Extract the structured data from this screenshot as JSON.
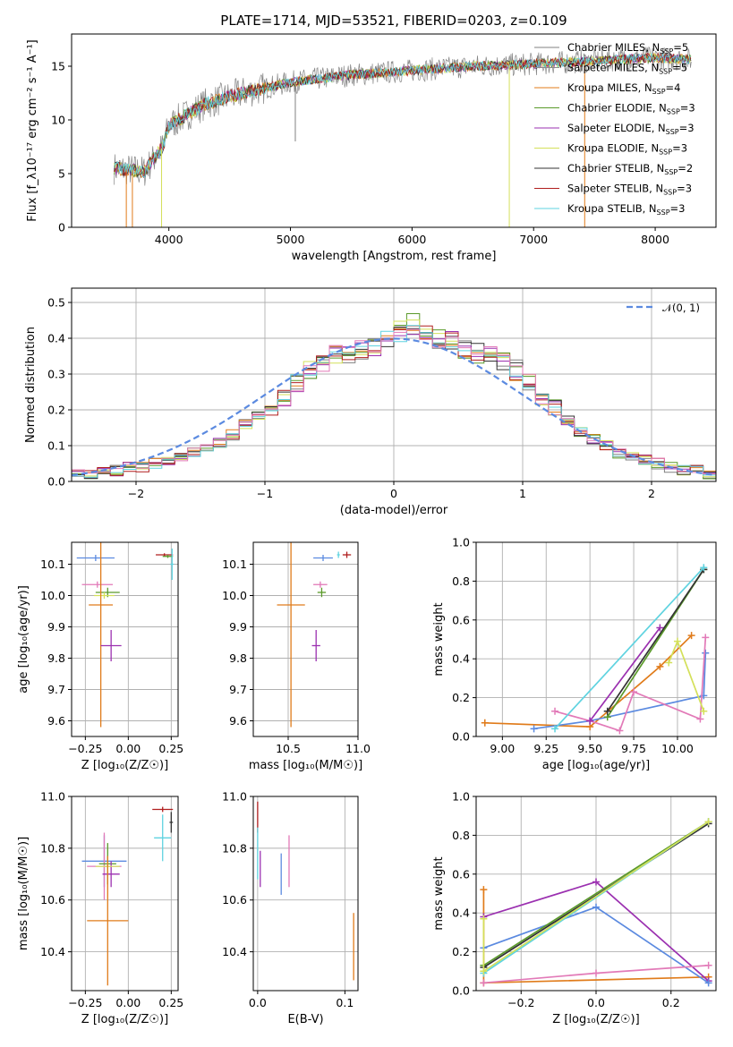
{
  "figure_title": "PLATE=1714, MJD=53521, FIBERID=0203, z=0.109",
  "colors": {
    "Chabrier MILES": "#808080",
    "Salpeter MILES": "#8c8c8c",
    "Kroupa MILES": "#e07b1a",
    "Chabrier ELODIE": "#5a9a2a",
    "Salpeter ELODIE": "#9b30b0",
    "Kroupa ELODIE": "#d4e05a",
    "Chabrier STELIB": "#333333",
    "Salpeter STELIB": "#b01e1e",
    "Kroupa STELIB": "#5fd3e0",
    "pink": "#e27ab8",
    "blue": "#5b8ae0",
    "normal": "#5b8ae0"
  },
  "chart_data": [
    {
      "id": "spectrum",
      "type": "line",
      "title": "PLATE=1714, MJD=53521, FIBERID=0203, z=0.109",
      "xlabel": "wavelength [Angstrom, rest frame]",
      "ylabel": "Flux [f_λ10⁻¹⁷ erg cm⁻² s⁻¹ A⁻¹]",
      "xlim": [
        3200,
        8500
      ],
      "ylim": [
        0,
        18
      ],
      "xticks": [
        "4000",
        "5000",
        "6000",
        "7000",
        "8000"
      ],
      "yticks": [
        "0",
        "5",
        "10",
        "15"
      ],
      "legend_position": "right",
      "legend": [
        {
          "label": "Chabrier MILES, N",
          "sub": "SSP",
          "suffix": "=5",
          "color": "#808080"
        },
        {
          "label": "Salpeter MILES, N",
          "sub": "SSP",
          "suffix": "=5",
          "color": "#8c8c8c"
        },
        {
          "label": "Kroupa MILES, N",
          "sub": "SSP",
          "suffix": "=4",
          "color": "#e07b1a"
        },
        {
          "label": "Chabrier ELODIE, N",
          "sub": "SSP",
          "suffix": "=3",
          "color": "#5a9a2a"
        },
        {
          "label": "Salpeter ELODIE, N",
          "sub": "SSP",
          "suffix": "=3",
          "color": "#9b30b0"
        },
        {
          "label": "Kroupa ELODIE, N",
          "sub": "SSP",
          "suffix": "=3",
          "color": "#d4e05a"
        },
        {
          "label": "Chabrier STELIB, N",
          "sub": "SSP",
          "suffix": "=2",
          "color": "#333333"
        },
        {
          "label": "Salpeter STELIB, N",
          "sub": "SSP",
          "suffix": "=3",
          "color": "#b01e1e"
        },
        {
          "label": "Kroupa STELIB, N",
          "sub": "SSP",
          "suffix": "=3",
          "color": "#5fd3e0"
        }
      ],
      "continuum": [
        [
          3550,
          5.5
        ],
        [
          3800,
          5.2
        ],
        [
          3950,
          7.5
        ],
        [
          4000,
          9.5
        ],
        [
          4300,
          11.5
        ],
        [
          4600,
          12.5
        ],
        [
          5000,
          13.5
        ],
        [
          5500,
          14.2
        ],
        [
          6000,
          14.6
        ],
        [
          6500,
          15.0
        ],
        [
          7000,
          15.2
        ],
        [
          7500,
          15.5
        ],
        [
          8000,
          15.8
        ],
        [
          8300,
          15.6
        ]
      ],
      "data_range": [
        3550,
        8300
      ],
      "spikes": [
        [
          3650,
          0
        ],
        [
          3700,
          0
        ],
        [
          3940,
          0
        ],
        [
          5040,
          8
        ],
        [
          6800,
          0
        ],
        [
          7420,
          0
        ]
      ]
    },
    {
      "id": "residuals",
      "type": "step",
      "xlabel": "(data-model)/error",
      "ylabel": "Normed distribution",
      "xlim": [
        -2.5,
        2.5
      ],
      "ylim": [
        0,
        0.54
      ],
      "xticks": [
        "-2",
        "-1",
        "0",
        "1",
        "2"
      ],
      "yticks": [
        "0.0",
        "0.1",
        "0.2",
        "0.3",
        "0.4",
        "0.5"
      ],
      "legend_position": "top-right",
      "legend": [
        {
          "label": "𝒩(0, 1)",
          "color": "#5b8ae0",
          "style": "dashed"
        }
      ],
      "bin_width": 0.1,
      "base_histogram": [
        0.02,
        0.02,
        0.03,
        0.03,
        0.04,
        0.04,
        0.05,
        0.06,
        0.07,
        0.08,
        0.1,
        0.11,
        0.13,
        0.16,
        0.18,
        0.2,
        0.24,
        0.28,
        0.31,
        0.33,
        0.35,
        0.36,
        0.37,
        0.38,
        0.4,
        0.42,
        0.44,
        0.42,
        0.4,
        0.39,
        0.37,
        0.36,
        0.35,
        0.33,
        0.31,
        0.27,
        0.24,
        0.21,
        0.17,
        0.14,
        0.12,
        0.1,
        0.08,
        0.07,
        0.06,
        0.05,
        0.04,
        0.03,
        0.03,
        0.02
      ],
      "histogram_colors": [
        "#808080",
        "#e07b1a",
        "#5a9a2a",
        "#9b30b0",
        "#d4e05a",
        "#333333",
        "#b01e1e",
        "#5fd3e0",
        "#e27ab8"
      ]
    },
    {
      "id": "age_vs_Z",
      "type": "errorbar",
      "xlabel": "Z [log₁₀(Z/Z☉)]",
      "ylabel": "age  [log₁₀(age/yr)]",
      "xlim": [
        -0.33,
        0.29
      ],
      "ylim": [
        9.55,
        10.17
      ],
      "xticks": [
        "-0.25",
        "0.00",
        "0.25"
      ],
      "yticks": [
        "9.6",
        "9.7",
        "9.8",
        "9.9",
        "10.0",
        "10.1"
      ],
      "points": [
        {
          "x": -0.19,
          "y": 10.12,
          "xerr": 0.11,
          "yerr": 0.01,
          "color": "#5b8ae0"
        },
        {
          "x": 0.21,
          "y": 10.13,
          "xerr": 0.05,
          "yerr": 0.005,
          "color": "#b01e1e"
        },
        {
          "x": 0.23,
          "y": 10.125,
          "xerr": 0.03,
          "yerr": 0.005,
          "color": "#5a9a2a"
        },
        {
          "x": -0.18,
          "y": 10.035,
          "xerr": 0.09,
          "yerr": 0.01,
          "color": "#e27ab8"
        },
        {
          "x": -0.12,
          "y": 10.01,
          "xerr": 0.07,
          "yerr": 0.015,
          "color": "#5a9a2a"
        },
        {
          "x": -0.14,
          "y": 10.0,
          "xerr": 0.06,
          "yerr": 0.01,
          "color": "#d4e05a"
        },
        {
          "x": -0.16,
          "y": 9.97,
          "xerr": 0.07,
          "yerr": 0.39,
          "color": "#e07b1a"
        },
        {
          "x": -0.1,
          "y": 9.84,
          "xerr": 0.06,
          "yerr": 0.05,
          "color": "#9b30b0"
        },
        {
          "x": 0.255,
          "y": 10.1,
          "xerr": 0.01,
          "yerr": 0.05,
          "color": "#5fd3e0"
        }
      ]
    },
    {
      "id": "age_vs_mass",
      "type": "errorbar",
      "xlabel": "mass [log₁₀(M/M☉)]",
      "ylabel": "",
      "xlim": [
        10.25,
        11.0
      ],
      "ylim": [
        9.55,
        10.17
      ],
      "xticks": [
        "10.5",
        "11.0"
      ],
      "yticks": [
        "9.6",
        "9.7",
        "9.8",
        "9.9",
        "10.0",
        "10.1"
      ],
      "points": [
        {
          "x": 10.75,
          "y": 10.12,
          "xerr": 0.07,
          "yerr": 0.01,
          "color": "#5b8ae0"
        },
        {
          "x": 10.92,
          "y": 10.13,
          "xerr": 0.03,
          "yerr": 0.01,
          "color": "#b01e1e"
        },
        {
          "x": 10.86,
          "y": 10.13,
          "xerr": 0.01,
          "yerr": 0.01,
          "color": "#5fd3e0"
        },
        {
          "x": 10.73,
          "y": 10.035,
          "xerr": 0.05,
          "yerr": 0.01,
          "color": "#e27ab8"
        },
        {
          "x": 10.74,
          "y": 10.01,
          "xerr": 0.03,
          "yerr": 0.015,
          "color": "#5a9a2a"
        },
        {
          "x": 10.52,
          "y": 9.97,
          "xerr": 0.1,
          "yerr": 0.39,
          "color": "#e07b1a"
        },
        {
          "x": 10.7,
          "y": 9.84,
          "xerr": 0.03,
          "yerr": 0.05,
          "color": "#9b30b0"
        }
      ]
    },
    {
      "id": "weight_vs_age",
      "type": "line",
      "xlabel": "age  [log₁₀(age/yr)]",
      "ylabel": "mass weight",
      "xlim": [
        8.85,
        10.22
      ],
      "ylim": [
        0,
        1.0
      ],
      "xticks": [
        "9.00",
        "9.25",
        "9.50",
        "9.75",
        "10.00"
      ],
      "yticks": [
        "0.0",
        "0.2",
        "0.4",
        "0.6",
        "0.8",
        "1.0"
      ],
      "series": [
        {
          "color": "#e07b1a",
          "points": [
            [
              8.9,
              0.07
            ],
            [
              9.5,
              0.05
            ],
            [
              9.9,
              0.36
            ],
            [
              10.08,
              0.52
            ]
          ]
        },
        {
          "color": "#5b8ae0",
          "points": [
            [
              9.18,
              0.04
            ],
            [
              9.5,
              0.08
            ],
            [
              10.15,
              0.21
            ],
            [
              10.16,
              0.43
            ]
          ]
        },
        {
          "color": "#e27ab8",
          "points": [
            [
              9.3,
              0.13
            ],
            [
              9.5,
              0.08
            ],
            [
              9.67,
              0.03
            ],
            [
              9.75,
              0.23
            ],
            [
              10.13,
              0.09
            ],
            [
              10.16,
              0.51
            ]
          ]
        },
        {
          "color": "#9b30b0",
          "points": [
            [
              9.5,
              0.08
            ],
            [
              9.9,
              0.56
            ]
          ]
        },
        {
          "color": "#5a9a2a",
          "points": [
            [
              9.6,
              0.1
            ],
            [
              10.15,
              0.86
            ]
          ]
        },
        {
          "color": "#333333",
          "points": [
            [
              9.6,
              0.13
            ],
            [
              10.15,
              0.86
            ]
          ]
        },
        {
          "color": "#5fd3e0",
          "points": [
            [
              9.3,
              0.04
            ],
            [
              10.15,
              0.87
            ]
          ]
        },
        {
          "color": "#d4e05a",
          "points": [
            [
              9.95,
              0.38
            ],
            [
              10.0,
              0.49
            ],
            [
              10.15,
              0.13
            ]
          ]
        }
      ]
    },
    {
      "id": "mass_vs_Z",
      "type": "errorbar",
      "xlabel": "Z [log₁₀(Z/Z☉)]",
      "ylabel": "mass [log₁₀(M/M☉)]",
      "xlim": [
        -0.33,
        0.29
      ],
      "ylim": [
        10.25,
        11.0
      ],
      "xticks": [
        "-0.25",
        "0.00",
        "0.25"
      ],
      "yticks": [
        "10.4",
        "10.6",
        "10.8",
        "11.0"
      ],
      "points": [
        {
          "x": 0.2,
          "y": 10.95,
          "xerr": 0.06,
          "yerr": 0.01,
          "color": "#b01e1e"
        },
        {
          "x": 0.25,
          "y": 10.9,
          "xerr": 0.01,
          "yerr": 0.04,
          "color": "#333333"
        },
        {
          "x": 0.2,
          "y": 10.84,
          "xerr": 0.05,
          "yerr": 0.09,
          "color": "#5fd3e0"
        },
        {
          "x": -0.14,
          "y": 10.75,
          "xerr": 0.13,
          "yerr": 0.1,
          "color": "#5b8ae0"
        },
        {
          "x": -0.14,
          "y": 10.73,
          "xerr": 0.1,
          "yerr": 0.13,
          "color": "#e27ab8"
        },
        {
          "x": -0.12,
          "y": 10.74,
          "xerr": 0.05,
          "yerr": 0.08,
          "color": "#5a9a2a"
        },
        {
          "x": -0.1,
          "y": 10.7,
          "xerr": 0.05,
          "yerr": 0.05,
          "color": "#9b30b0"
        },
        {
          "x": -0.12,
          "y": 10.73,
          "xerr": 0.07,
          "yerr": 0.02,
          "color": "#d4e05a"
        },
        {
          "x": -0.12,
          "y": 10.52,
          "xerr": 0.12,
          "yerr": 0.25,
          "color": "#e07b1a"
        }
      ]
    },
    {
      "id": "mass_vs_EBV",
      "type": "errorbar",
      "xlabel": "E(B-V)",
      "ylabel": "",
      "xlim": [
        -0.005,
        0.115
      ],
      "ylim": [
        10.25,
        11.0
      ],
      "xticks": [
        "0.0",
        "0.1"
      ],
      "yticks": [
        "10.4",
        "10.6",
        "10.8",
        "11.0"
      ],
      "points": [
        {
          "x": 0.0,
          "y": 10.92,
          "xerr": 0,
          "yerr": 0.06,
          "color": "#b01e1e"
        },
        {
          "x": 0.0,
          "y": 10.78,
          "xerr": 0,
          "yerr": 0.1,
          "color": "#5fd3e0"
        },
        {
          "x": 0.003,
          "y": 10.72,
          "xerr": 0,
          "yerr": 0.07,
          "color": "#9b30b0"
        },
        {
          "x": 0.027,
          "y": 10.7,
          "xerr": 0,
          "yerr": 0.08,
          "color": "#5b8ae0"
        },
        {
          "x": 0.036,
          "y": 10.75,
          "xerr": 0,
          "yerr": 0.1,
          "color": "#e27ab8"
        },
        {
          "x": 0.11,
          "y": 10.42,
          "xerr": 0,
          "yerr": 0.13,
          "color": "#e07b1a"
        }
      ]
    },
    {
      "id": "weight_vs_Z",
      "type": "line",
      "xlabel": "Z [log₁₀(Z/Z☉)]",
      "ylabel": "mass weight",
      "xlim": [
        -0.32,
        0.32
      ],
      "ylim": [
        0,
        1.0
      ],
      "xticks": [
        "-0.2",
        "0.0",
        "0.2"
      ],
      "yticks": [
        "0.0",
        "0.2",
        "0.4",
        "0.6",
        "0.8",
        "1.0"
      ],
      "series": [
        {
          "color": "#e07b1a",
          "points": [
            [
              -0.3,
              0.52
            ],
            [
              -0.3,
              0.04
            ],
            [
              0.3,
              0.07
            ]
          ]
        },
        {
          "color": "#9b30b0",
          "points": [
            [
              -0.3,
              0.38
            ],
            [
              0.0,
              0.56
            ],
            [
              0.3,
              0.05
            ]
          ]
        },
        {
          "color": "#5b8ae0",
          "points": [
            [
              -0.3,
              0.22
            ],
            [
              0.0,
              0.43
            ],
            [
              0.3,
              0.04
            ]
          ]
        },
        {
          "color": "#e27ab8",
          "points": [
            [
              -0.3,
              0.04
            ],
            [
              0.0,
              0.09
            ],
            [
              0.3,
              0.13
            ]
          ]
        },
        {
          "color": "#5a9a2a",
          "points": [
            [
              -0.3,
              0.13
            ],
            [
              0.3,
              0.87
            ]
          ]
        },
        {
          "color": "#333333",
          "points": [
            [
              -0.3,
              0.12
            ],
            [
              0.3,
              0.86
            ]
          ]
        },
        {
          "color": "#5fd3e0",
          "points": [
            [
              -0.3,
              0.09
            ],
            [
              0.3,
              0.87
            ]
          ]
        },
        {
          "color": "#d4e05a",
          "points": [
            [
              -0.3,
              0.37
            ],
            [
              -0.3,
              0.1
            ],
            [
              0.3,
              0.87
            ]
          ]
        }
      ]
    }
  ]
}
